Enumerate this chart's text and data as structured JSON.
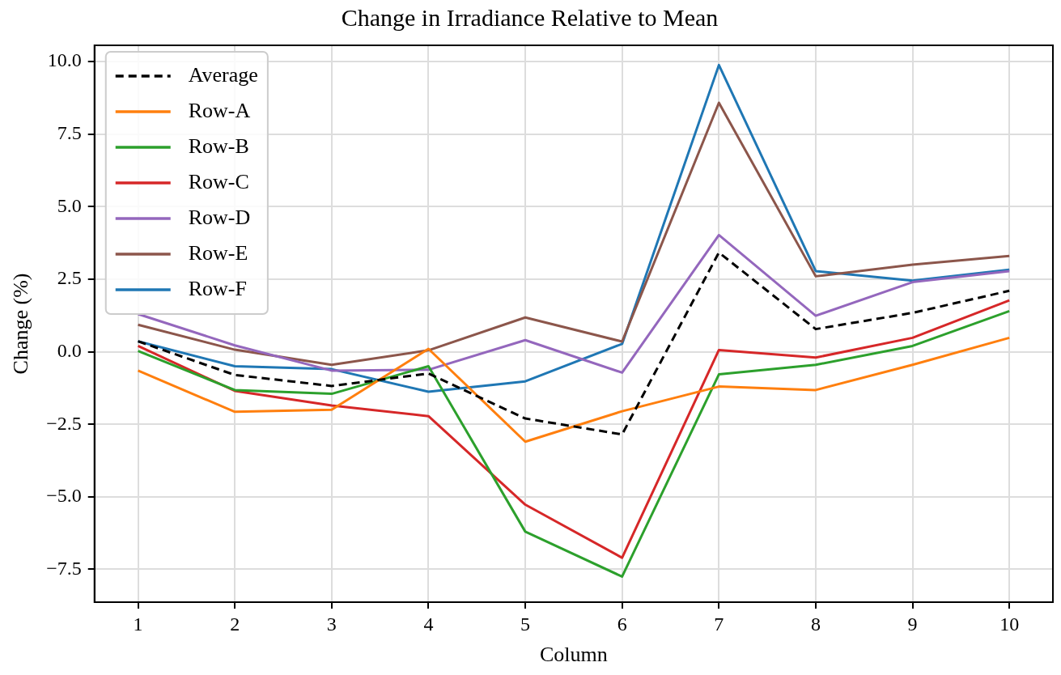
{
  "chart_data": {
    "type": "line",
    "title": "Change in Irradiance Relative to Mean",
    "xlabel": "Column",
    "ylabel": "Change (%)",
    "x": [
      1,
      2,
      3,
      4,
      5,
      6,
      7,
      8,
      9,
      10
    ],
    "series": [
      {
        "name": "Average",
        "color": "#000000",
        "line_style": "dashed",
        "values": [
          0.36,
          -0.8,
          -1.18,
          -0.75,
          -2.3,
          -2.85,
          3.42,
          0.78,
          1.34,
          2.1
        ]
      },
      {
        "name": "Row-A",
        "color": "#ff7f0e",
        "values": [
          -0.65,
          -2.07,
          -2.0,
          0.1,
          -3.1,
          -2.05,
          -1.2,
          -1.32,
          -0.45,
          0.48
        ]
      },
      {
        "name": "Row-B",
        "color": "#2ca02c",
        "values": [
          0.03,
          -1.32,
          -1.45,
          -0.5,
          -6.2,
          -7.75,
          -0.78,
          -0.45,
          0.2,
          1.4
        ]
      },
      {
        "name": "Row-C",
        "color": "#d62728",
        "values": [
          0.2,
          -1.35,
          -1.85,
          -2.22,
          -5.27,
          -7.1,
          0.06,
          -0.2,
          0.48,
          1.77
        ]
      },
      {
        "name": "Row-D",
        "color": "#9467bd",
        "values": [
          1.3,
          0.22,
          -0.65,
          -0.62,
          0.4,
          -0.72,
          4.02,
          1.24,
          2.4,
          2.78
        ]
      },
      {
        "name": "Row-E",
        "color": "#8c564b",
        "values": [
          0.93,
          0.07,
          -0.45,
          0.05,
          1.18,
          0.35,
          8.58,
          2.6,
          3.0,
          3.3
        ]
      },
      {
        "name": "Row-F",
        "color": "#1f77b4",
        "values": [
          0.36,
          -0.5,
          -0.6,
          -1.38,
          -1.02,
          0.27,
          9.88,
          2.78,
          2.45,
          2.83
        ]
      }
    ],
    "xlim": [
      0.55,
      10.45
    ],
    "xticks": [
      1,
      2,
      3,
      4,
      5,
      6,
      7,
      8,
      9,
      10
    ],
    "ylim": [
      -8.63,
      10.56
    ],
    "yticks": [
      {
        "value": -7.5,
        "label": "−7.5"
      },
      {
        "value": -5,
        "label": "−5.0"
      },
      {
        "value": -2.5,
        "label": "−2.5"
      },
      {
        "value": 0,
        "label": "0.0"
      },
      {
        "value": 2.5,
        "label": "2.5"
      },
      {
        "value": 5,
        "label": "5.0"
      },
      {
        "value": 7.5,
        "label": "7.5"
      },
      {
        "value": 10,
        "label": "10.0"
      }
    ],
    "grid": true,
    "legend": "top left",
    "marker": "none",
    "line_style": "solid"
  }
}
